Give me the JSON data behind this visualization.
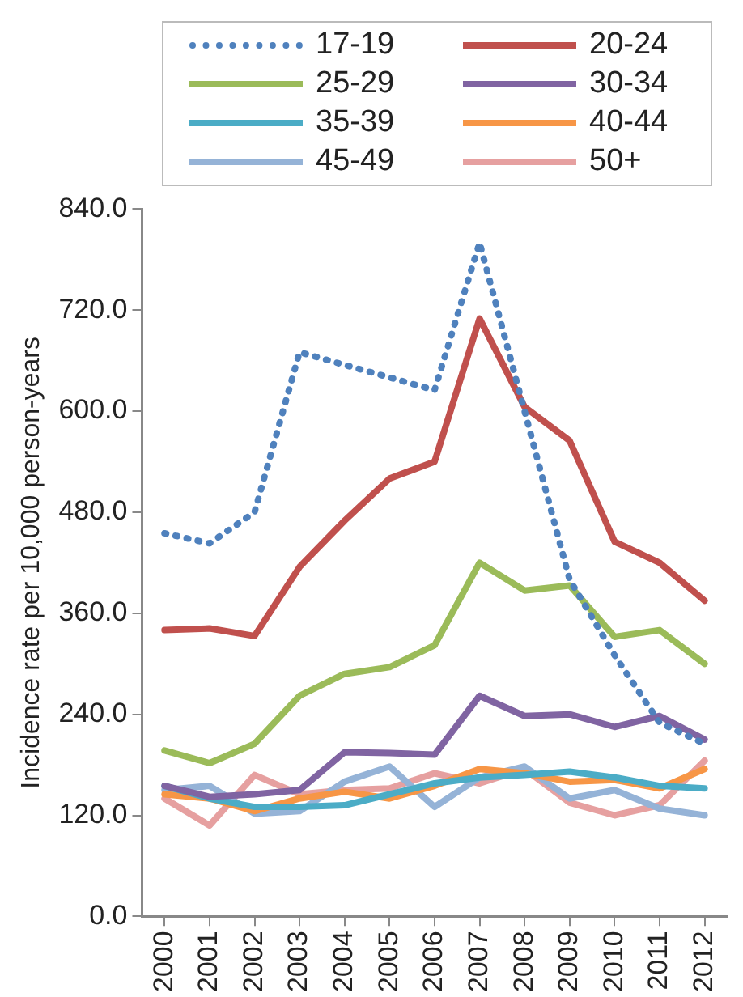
{
  "chart_data": {
    "type": "line",
    "ylabel": "Incidence rate per 10,000 person-years",
    "categories": [
      "2000",
      "2001",
      "2002",
      "2003",
      "2004",
      "2005",
      "2006",
      "2007",
      "2008",
      "2009",
      "2010",
      "2011",
      "2012"
    ],
    "ylim": [
      0,
      840
    ],
    "yticks": [
      {
        "value": 0,
        "label": "0.0"
      },
      {
        "value": 120,
        "label": "120.0"
      },
      {
        "value": 240,
        "label": "240.0"
      },
      {
        "value": 360,
        "label": "360.0"
      },
      {
        "value": 480,
        "label": "480.0"
      },
      {
        "value": 600,
        "label": "600.0"
      },
      {
        "value": 720,
        "label": "720.0"
      },
      {
        "value": 840,
        "label": "840.0"
      }
    ],
    "grid": false,
    "legend": "top",
    "marker": "none",
    "series": [
      {
        "name": "17-19",
        "color": "#4f81bd",
        "line_style": "dotted",
        "values": [
          455,
          443,
          480,
          670,
          655,
          640,
          625,
          800,
          600,
          400,
          310,
          230,
          205
        ]
      },
      {
        "name": "20-24",
        "color": "#c0504d",
        "values": [
          340,
          342,
          333,
          415,
          470,
          520,
          540,
          710,
          605,
          565,
          445,
          420,
          375
        ]
      },
      {
        "name": "25-29",
        "color": "#9bbb59",
        "values": [
          197,
          182,
          205,
          262,
          288,
          296,
          322,
          420,
          387,
          393,
          332,
          340,
          300
        ]
      },
      {
        "name": "30-34",
        "color": "#8064a2",
        "values": [
          155,
          142,
          145,
          150,
          195,
          194,
          192,
          262,
          238,
          240,
          225,
          238,
          210
        ]
      },
      {
        "name": "35-39",
        "color": "#4bacc6",
        "values": [
          155,
          140,
          130,
          130,
          132,
          145,
          158,
          165,
          168,
          172,
          165,
          155,
          152
        ]
      },
      {
        "name": "40-44",
        "color": "#f79646",
        "values": [
          145,
          140,
          125,
          140,
          148,
          140,
          155,
          175,
          170,
          160,
          162,
          152,
          175
        ]
      },
      {
        "name": "45-49",
        "color": "#95b3d7",
        "values": [
          150,
          155,
          122,
          125,
          160,
          178,
          130,
          165,
          178,
          140,
          150,
          128,
          120
        ]
      },
      {
        "name": "50+",
        "color": "#e6a0a0",
        "values": [
          140,
          108,
          168,
          145,
          150,
          152,
          170,
          158,
          175,
          135,
          120,
          132,
          185
        ]
      }
    ]
  }
}
